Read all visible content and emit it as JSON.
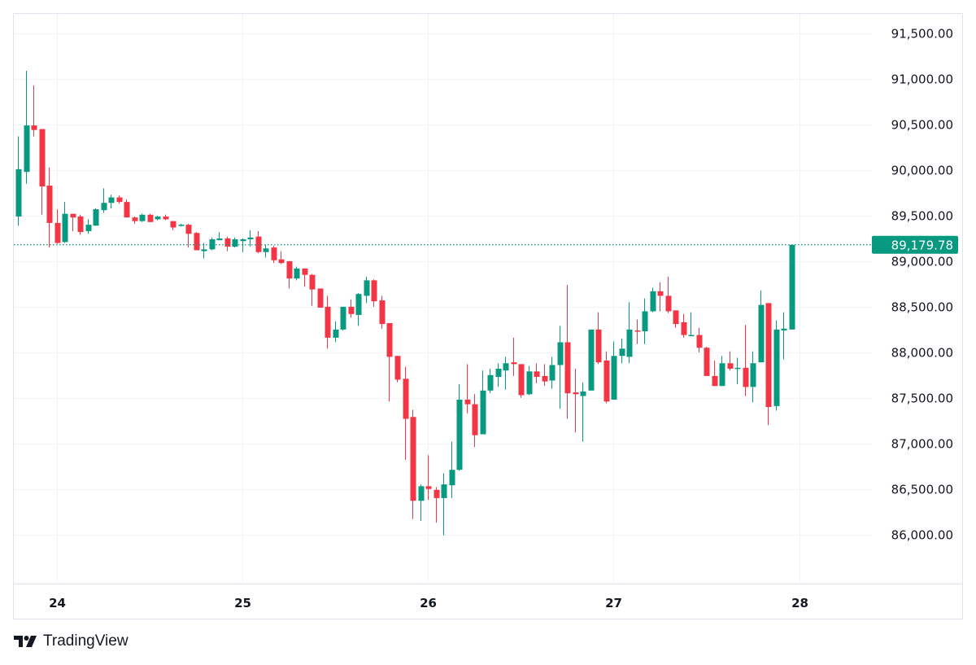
{
  "brand": {
    "name": "TradingView",
    "logo_icon": "tradingview-logo-icon"
  },
  "colors": {
    "up": "#089981",
    "down": "#f23645",
    "grid": "#f0f3fa",
    "border": "#e0e3eb",
    "text": "#131722",
    "last_price_line": "#089981"
  },
  "chart_data": {
    "type": "candlestick",
    "interval": "1h",
    "first_candle_time": "23 19:00",
    "ylim": [
      85470,
      91715
    ],
    "grid": true,
    "y_ticks": [
      86000,
      86500,
      87000,
      87500,
      88000,
      88500,
      89000,
      89500,
      90000,
      90500,
      91000,
      91500
    ],
    "y_tick_labels": [
      "86,000.00",
      "86,500.00",
      "87,000.00",
      "87,500.00",
      "88,000.00",
      "88,500.00",
      "89,000.00",
      "89,500.00",
      "90,000.00",
      "90,500.00",
      "91,000.00",
      "91,500.00"
    ],
    "x_ticks": [
      {
        "label": "24",
        "candle": 5
      },
      {
        "label": "25",
        "candle": 29
      },
      {
        "label": "26",
        "candle": 53
      },
      {
        "label": "27",
        "candle": 77
      },
      {
        "label": "28",
        "candle": 101
      }
    ],
    "last_price": 89179.78,
    "last_price_label": "89,179.78",
    "ohlc_columns": [
      "open",
      "high",
      "low",
      "close"
    ],
    "candles": [
      [
        89490,
        90370,
        89390,
        90010
      ],
      [
        89980,
        91090,
        89850,
        90490
      ],
      [
        90490,
        90930,
        90370,
        90440
      ],
      [
        90450,
        90450,
        89510,
        89820
      ],
      [
        89830,
        90030,
        89150,
        89420
      ],
      [
        89420,
        89570,
        89190,
        89200
      ],
      [
        89210,
        89650,
        89200,
        89520
      ],
      [
        89520,
        89520,
        89330,
        89480
      ],
      [
        89490,
        89510,
        89290,
        89320
      ],
      [
        89330,
        89460,
        89300,
        89400
      ],
      [
        89390,
        89580,
        89390,
        89570
      ],
      [
        89560,
        89800,
        89530,
        89640
      ],
      [
        89640,
        89730,
        89580,
        89700
      ],
      [
        89700,
        89720,
        89630,
        89650
      ],
      [
        89650,
        89680,
        89480,
        89480
      ],
      [
        89480,
        89490,
        89410,
        89440
      ],
      [
        89440,
        89520,
        89430,
        89510
      ],
      [
        89510,
        89520,
        89430,
        89430
      ],
      [
        89460,
        89500,
        89450,
        89490
      ],
      [
        89490,
        89510,
        89450,
        89460
      ],
      [
        89440,
        89440,
        89340,
        89370
      ],
      [
        89390,
        89410,
        89380,
        89400
      ],
      [
        89400,
        89410,
        89150,
        89300
      ],
      [
        89310,
        89320,
        89120,
        89120
      ],
      [
        89110,
        89200,
        89030,
        89130
      ],
      [
        89130,
        89260,
        89120,
        89240
      ],
      [
        89230,
        89320,
        89230,
        89250
      ],
      [
        89250,
        89270,
        89110,
        89160
      ],
      [
        89160,
        89260,
        89150,
        89240
      ],
      [
        89220,
        89250,
        89100,
        89240
      ],
      [
        89240,
        89340,
        89160,
        89260
      ],
      [
        89270,
        89330,
        89090,
        89100
      ],
      [
        89100,
        89180,
        89040,
        89140
      ],
      [
        89150,
        89170,
        88980,
        89010
      ],
      [
        89020,
        89110,
        88970,
        88980
      ],
      [
        89000,
        89000,
        88700,
        88810
      ],
      [
        88810,
        88940,
        88790,
        88920
      ],
      [
        88920,
        88920,
        88720,
        88850
      ],
      [
        88850,
        88860,
        88510,
        88690
      ],
      [
        88700,
        88700,
        88490,
        88490
      ],
      [
        88500,
        88620,
        88040,
        88160
      ],
      [
        88160,
        88340,
        88110,
        88250
      ],
      [
        88250,
        88500,
        88240,
        88500
      ],
      [
        88500,
        88580,
        88380,
        88420
      ],
      [
        88410,
        88650,
        88290,
        88640
      ],
      [
        88620,
        88830,
        88540,
        88790
      ],
      [
        88790,
        88800,
        88500,
        88560
      ],
      [
        88570,
        88620,
        88260,
        88310
      ],
      [
        88320,
        88320,
        87460,
        87950
      ],
      [
        87960,
        87960,
        87670,
        87700
      ],
      [
        87710,
        87840,
        86820,
        87270
      ],
      [
        87290,
        87370,
        86170,
        86370
      ],
      [
        86370,
        86550,
        86150,
        86530
      ],
      [
        86530,
        86870,
        86380,
        86500
      ],
      [
        86490,
        86520,
        86130,
        86400
      ],
      [
        86400,
        86670,
        85990,
        86550
      ],
      [
        86540,
        87020,
        86400,
        86710
      ],
      [
        86710,
        87650,
        86700,
        87480
      ],
      [
        87480,
        87870,
        87330,
        87430
      ],
      [
        87430,
        87540,
        86960,
        87090
      ],
      [
        87100,
        87800,
        87100,
        87580
      ],
      [
        87580,
        87820,
        87550,
        87750
      ],
      [
        87730,
        87880,
        87620,
        87820
      ],
      [
        87800,
        87950,
        87590,
        87880
      ],
      [
        87890,
        88160,
        87740,
        87870
      ],
      [
        87870,
        87870,
        87500,
        87530
      ],
      [
        87540,
        87850,
        87530,
        87790
      ],
      [
        87790,
        87880,
        87660,
        87730
      ],
      [
        87740,
        87870,
        87630,
        87680
      ],
      [
        87690,
        87950,
        87600,
        87860
      ],
      [
        87860,
        88290,
        87380,
        88110
      ],
      [
        88110,
        88740,
        87270,
        87550
      ],
      [
        87560,
        87820,
        87120,
        87540
      ],
      [
        87520,
        87670,
        87020,
        87570
      ],
      [
        87580,
        88250,
        87580,
        88250
      ],
      [
        88250,
        88440,
        87870,
        87890
      ],
      [
        87910,
        88010,
        87440,
        87460
      ],
      [
        87480,
        88120,
        87480,
        87960
      ],
      [
        87960,
        88150,
        87880,
        88040
      ],
      [
        87950,
        88550,
        87880,
        88250
      ],
      [
        88240,
        88360,
        88090,
        88230
      ],
      [
        88230,
        88590,
        88090,
        88450
      ],
      [
        88450,
        88710,
        88440,
        88670
      ],
      [
        88670,
        88770,
        88450,
        88620
      ],
      [
        88620,
        88830,
        88430,
        88450
      ],
      [
        88460,
        88460,
        88270,
        88310
      ],
      [
        88330,
        88420,
        88160,
        88190
      ],
      [
        88190,
        88440,
        88180,
        88190
      ],
      [
        88190,
        88270,
        88000,
        88050
      ],
      [
        88050,
        88060,
        87740,
        87740
      ],
      [
        87740,
        87910,
        87630,
        87630
      ],
      [
        87630,
        87960,
        87630,
        87880
      ],
      [
        87880,
        88010,
        87800,
        87820
      ],
      [
        87820,
        87940,
        87650,
        87830
      ],
      [
        87830,
        88300,
        87520,
        87620
      ],
      [
        87620,
        88010,
        87450,
        87880
      ],
      [
        87890,
        88680,
        87890,
        88520
      ],
      [
        88540,
        88540,
        87200,
        87400
      ],
      [
        87410,
        88350,
        87360,
        88250
      ],
      [
        88240,
        88440,
        87920,
        88260
      ],
      [
        88250,
        89180,
        88250,
        89179.78
      ]
    ]
  }
}
